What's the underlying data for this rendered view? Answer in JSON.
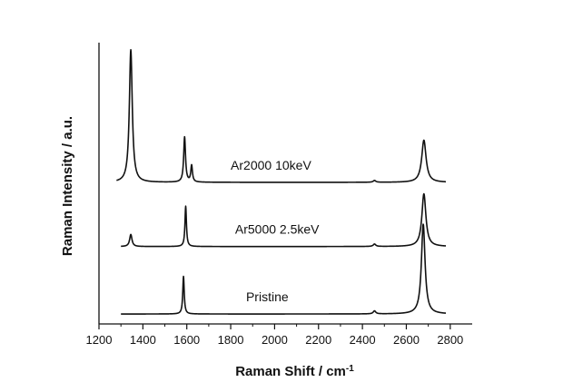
{
  "chart_data": {
    "type": "line",
    "xlabel": "Raman Shift / cm",
    "xlabel_sup": "-1",
    "ylabel": "Raman Intensity / a.u.",
    "xlim": [
      1200,
      2900
    ],
    "x_ticks": [
      "1200",
      "1400",
      "1600",
      "1800",
      "2000",
      "2200",
      "2400",
      "2600",
      "2800"
    ],
    "y_ticks": false,
    "grid": false,
    "line_color": "#111111",
    "series": [
      {
        "name": "Ar2000 10keV",
        "x_range": [
          1280,
          2780
        ],
        "baseline": 0.47,
        "peaks": [
          {
            "center": 1345,
            "height": 0.44,
            "width": 16
          },
          {
            "center": 1590,
            "height": 0.15,
            "width": 10
          },
          {
            "center": 1622,
            "height": 0.055,
            "width": 9
          },
          {
            "center": 2455,
            "height": 0.006,
            "width": 14
          },
          {
            "center": 2680,
            "height": 0.14,
            "width": 24
          }
        ]
      },
      {
        "name": "Ar5000 2.5keV",
        "x_range": [
          1300,
          2780
        ],
        "baseline": 0.257,
        "peaks": [
          {
            "center": 1345,
            "height": 0.04,
            "width": 13
          },
          {
            "center": 1595,
            "height": 0.134,
            "width": 8
          },
          {
            "center": 2455,
            "height": 0.008,
            "width": 14
          },
          {
            "center": 2680,
            "height": 0.175,
            "width": 22
          }
        ]
      },
      {
        "name": "Pristine",
        "x_range": [
          1300,
          2780
        ],
        "baseline": 0.033,
        "peaks": [
          {
            "center": 1585,
            "height": 0.125,
            "width": 8
          },
          {
            "center": 2455,
            "height": 0.01,
            "width": 14
          },
          {
            "center": 2677,
            "height": 0.298,
            "width": 20
          }
        ]
      }
    ]
  }
}
